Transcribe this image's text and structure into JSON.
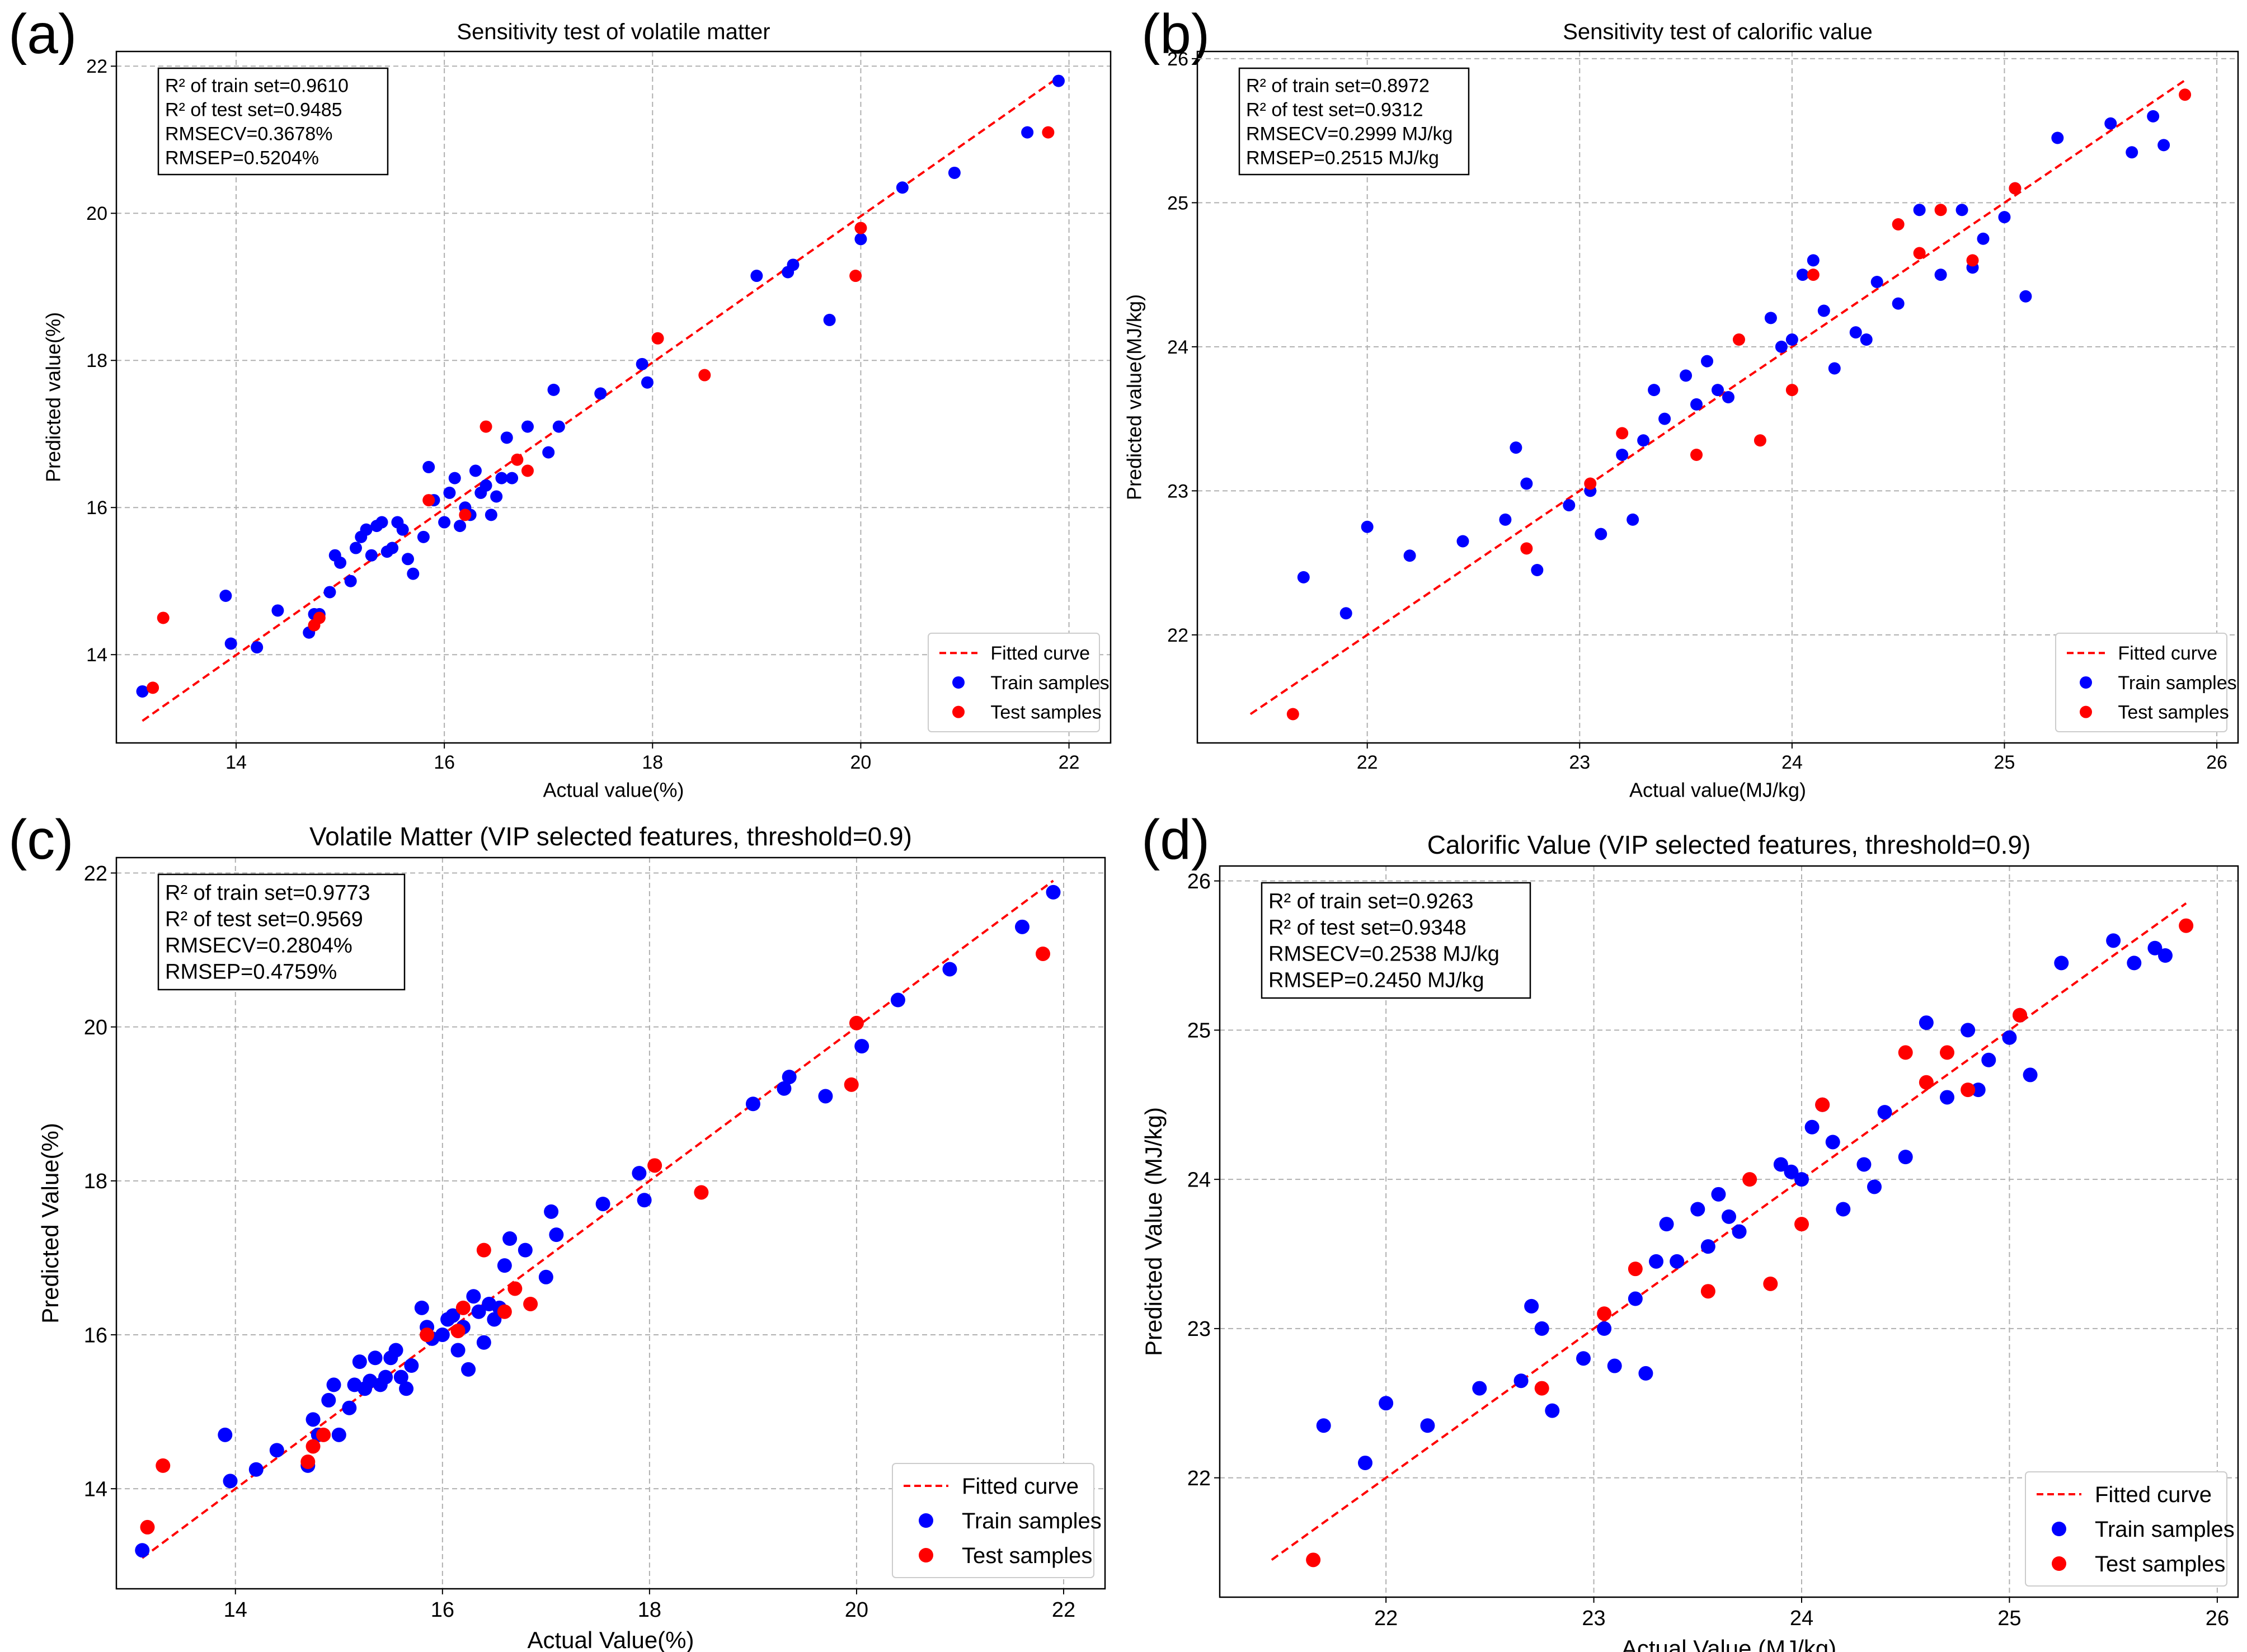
{
  "figure": {
    "background": "#ffffff"
  },
  "colors": {
    "train": "#0000ff",
    "test": "#ff0000",
    "fit": "#ff0000",
    "grid": "#b0b0b0"
  },
  "chart_data": [
    {
      "type": "scatter",
      "panel_label": "(a)",
      "title": "Sensitivity test of volatile matter",
      "xlabel": "Actual value(%)",
      "ylabel": "Predicted value(%)",
      "xlim": [
        12.85,
        22.4
      ],
      "ylim": [
        12.8,
        22.2
      ],
      "xticks": [
        14,
        16,
        18,
        20,
        22
      ],
      "yticks": [
        14,
        16,
        18,
        20,
        22
      ],
      "grid": true,
      "legend_position": "bottom-right",
      "stats": [
        "R² of train set=0.9610",
        "R² of test set=0.9485",
        "RMSECV=0.3678%",
        "RMSEP=0.5204%"
      ],
      "fit_line": {
        "name": "Fitted curve",
        "x": [
          13.1,
          21.9
        ],
        "y": [
          13.1,
          21.85
        ]
      },
      "series": [
        {
          "name": "Train samples",
          "x": [
            13.1,
            13.9,
            13.95,
            14.2,
            14.4,
            14.7,
            14.75,
            14.8,
            14.9,
            14.95,
            15.0,
            15.1,
            15.15,
            15.2,
            15.25,
            15.3,
            15.35,
            15.4,
            15.45,
            15.5,
            15.55,
            15.6,
            15.65,
            15.7,
            15.8,
            15.85,
            15.9,
            16.0,
            16.05,
            16.1,
            16.15,
            16.2,
            16.25,
            16.3,
            16.35,
            16.4,
            16.45,
            16.5,
            16.55,
            16.6,
            16.65,
            16.8,
            17.0,
            17.05,
            17.1,
            17.5,
            17.9,
            17.95,
            19.0,
            19.3,
            19.35,
            19.7,
            20.0,
            20.4,
            20.9,
            21.6,
            21.9
          ],
          "y": [
            13.5,
            14.8,
            14.15,
            14.1,
            14.6,
            14.3,
            14.55,
            14.55,
            14.85,
            15.35,
            15.25,
            15.0,
            15.45,
            15.6,
            15.7,
            15.35,
            15.75,
            15.8,
            15.4,
            15.45,
            15.8,
            15.7,
            15.3,
            15.1,
            15.6,
            16.55,
            16.1,
            15.8,
            16.2,
            16.4,
            15.75,
            16.0,
            15.9,
            16.5,
            16.2,
            16.3,
            15.9,
            16.15,
            16.4,
            16.95,
            16.4,
            17.1,
            16.75,
            17.6,
            17.1,
            17.55,
            17.95,
            17.7,
            19.15,
            19.2,
            19.3,
            18.55,
            19.65,
            20.35,
            20.55,
            21.1,
            21.8
          ]
        },
        {
          "name": "Test samples",
          "x": [
            13.2,
            13.3,
            14.75,
            14.8,
            15.85,
            16.2,
            16.4,
            16.7,
            16.8,
            18.05,
            18.5,
            19.95,
            20.0,
            21.8
          ],
          "y": [
            13.55,
            14.5,
            14.4,
            14.5,
            16.1,
            15.9,
            17.1,
            16.65,
            16.5,
            18.3,
            17.8,
            19.15,
            19.8,
            21.1
          ]
        }
      ]
    },
    {
      "type": "scatter",
      "panel_label": "(b)",
      "title": "Sensitivity test of calorific value",
      "xlabel": "Actual value(MJ/kg)",
      "ylabel": "Predicted value(MJ/kg)",
      "xlim": [
        21.2,
        26.1
      ],
      "ylim": [
        21.25,
        26.05
      ],
      "xticks": [
        22,
        23,
        24,
        25,
        26
      ],
      "yticks": [
        22,
        23,
        24,
        25,
        26
      ],
      "grid": true,
      "legend_position": "bottom-right",
      "stats": [
        "R² of train set=0.8972",
        "R² of test set=0.9312",
        "RMSECV=0.2999 MJ/kg",
        "RMSEP=0.2515 MJ/kg"
      ],
      "fit_line": {
        "name": "Fitted curve",
        "x": [
          21.45,
          25.85
        ],
        "y": [
          21.45,
          25.85
        ]
      },
      "series": [
        {
          "name": "Train samples",
          "x": [
            21.7,
            21.9,
            22.0,
            22.2,
            22.45,
            22.65,
            22.7,
            22.75,
            22.8,
            22.95,
            23.05,
            23.1,
            23.2,
            23.25,
            23.3,
            23.35,
            23.4,
            23.5,
            23.55,
            23.6,
            23.65,
            23.7,
            23.9,
            23.95,
            24.0,
            24.05,
            24.1,
            24.15,
            24.2,
            24.3,
            24.35,
            24.4,
            24.5,
            24.6,
            24.7,
            24.8,
            24.85,
            24.9,
            25.0,
            25.05,
            25.1,
            25.25,
            25.5,
            25.6,
            25.7,
            25.75
          ],
          "y": [
            22.4,
            22.15,
            22.75,
            22.55,
            22.65,
            22.8,
            23.3,
            23.05,
            22.45,
            22.9,
            23.0,
            22.7,
            23.25,
            22.8,
            23.35,
            23.7,
            23.5,
            23.8,
            23.6,
            23.9,
            23.7,
            23.65,
            24.2,
            24.0,
            24.05,
            24.5,
            24.6,
            24.25,
            23.85,
            24.1,
            24.05,
            24.45,
            24.3,
            24.95,
            24.5,
            24.95,
            24.55,
            24.75,
            24.9,
            25.1,
            24.35,
            25.45,
            25.55,
            25.35,
            25.6,
            25.4
          ]
        },
        {
          "name": "Test samples",
          "x": [
            21.65,
            22.75,
            23.05,
            23.2,
            23.55,
            23.75,
            23.85,
            24.0,
            24.1,
            24.5,
            24.6,
            24.7,
            24.85,
            25.05,
            25.85
          ],
          "y": [
            21.45,
            22.6,
            23.05,
            23.4,
            23.25,
            24.05,
            23.35,
            23.7,
            24.5,
            24.85,
            24.65,
            24.95,
            24.6,
            25.1,
            25.75
          ]
        }
      ]
    },
    {
      "type": "scatter",
      "panel_label": "(c)",
      "title": "Volatile Matter (VIP selected features, threshold=0.9)",
      "xlabel": "Actual Value(%)",
      "ylabel": "Predicted Value(%)",
      "xlim": [
        12.85,
        22.4
      ],
      "ylim": [
        12.7,
        22.2
      ],
      "xticks": [
        14,
        16,
        18,
        20,
        22
      ],
      "yticks": [
        14,
        16,
        18,
        20,
        22
      ],
      "grid": true,
      "legend_position": "bottom-right",
      "stats": [
        "R² of train set=0.9773",
        "R² of test set=0.9569",
        "RMSECV=0.2804%",
        "RMSEP=0.4759%"
      ],
      "fit_line": {
        "name": "Fitted curve",
        "x": [
          13.1,
          21.9
        ],
        "y": [
          13.1,
          21.9
        ]
      },
      "series": [
        {
          "name": "Train samples",
          "x": [
            13.1,
            13.9,
            13.95,
            14.2,
            14.4,
            14.7,
            14.75,
            14.8,
            14.9,
            14.95,
            15.0,
            15.1,
            15.15,
            15.2,
            15.25,
            15.3,
            15.35,
            15.4,
            15.45,
            15.5,
            15.55,
            15.6,
            15.65,
            15.7,
            15.8,
            15.85,
            15.9,
            16.0,
            16.05,
            16.1,
            16.15,
            16.2,
            16.25,
            16.3,
            16.35,
            16.4,
            16.45,
            16.5,
            16.55,
            16.6,
            16.65,
            16.8,
            17.0,
            17.05,
            17.1,
            17.55,
            17.9,
            17.95,
            19.0,
            19.3,
            19.35,
            19.7,
            20.05,
            20.4,
            20.9,
            21.6,
            21.9
          ],
          "y": [
            13.2,
            14.7,
            14.1,
            14.25,
            14.5,
            14.3,
            14.9,
            14.7,
            15.15,
            15.35,
            14.7,
            15.05,
            15.35,
            15.65,
            15.3,
            15.4,
            15.7,
            15.35,
            15.45,
            15.7,
            15.8,
            15.45,
            15.3,
            15.6,
            16.35,
            16.1,
            15.95,
            16.0,
            16.2,
            16.25,
            15.8,
            16.1,
            15.55,
            16.5,
            16.3,
            15.9,
            16.4,
            16.2,
            16.35,
            16.9,
            17.25,
            17.1,
            16.75,
            17.6,
            17.3,
            17.7,
            18.1,
            17.75,
            19.0,
            19.2,
            19.35,
            19.1,
            19.75,
            20.35,
            20.75,
            21.3,
            21.75
          ]
        },
        {
          "name": "Test samples",
          "x": [
            13.15,
            13.3,
            14.7,
            14.75,
            14.85,
            15.85,
            16.15,
            16.2,
            16.4,
            16.6,
            16.7,
            16.85,
            18.05,
            18.5,
            19.95,
            20.0,
            21.8
          ],
          "y": [
            13.5,
            14.3,
            14.35,
            14.55,
            14.7,
            16.0,
            16.05,
            16.35,
            17.1,
            16.3,
            16.6,
            16.4,
            18.2,
            17.85,
            19.25,
            20.05,
            20.95
          ]
        }
      ]
    },
    {
      "type": "scatter",
      "panel_label": "(d)",
      "title": "Calorific Value (VIP selected features, threshold=0.9)",
      "xlabel": "Actual Value  (MJ/kg)",
      "ylabel": "Predicted Value  (MJ/kg)",
      "xlim": [
        21.2,
        26.1
      ],
      "ylim": [
        21.2,
        26.1
      ],
      "xticks": [
        22,
        23,
        24,
        25,
        26
      ],
      "yticks": [
        22,
        23,
        24,
        25,
        26
      ],
      "grid": true,
      "legend_position": "bottom-right",
      "stats": [
        "R² of train set=0.9263",
        "R² of test set=0.9348",
        "RMSECV=0.2538 MJ/kg",
        "RMSEP=0.2450 MJ/kg"
      ],
      "fit_line": {
        "name": "Fitted curve",
        "x": [
          21.45,
          25.85
        ],
        "y": [
          21.45,
          25.85
        ]
      },
      "series": [
        {
          "name": "Train samples",
          "x": [
            21.7,
            21.9,
            22.0,
            22.2,
            22.45,
            22.65,
            22.7,
            22.75,
            22.8,
            22.95,
            23.05,
            23.1,
            23.2,
            23.25,
            23.3,
            23.35,
            23.4,
            23.5,
            23.55,
            23.6,
            23.65,
            23.7,
            23.9,
            23.95,
            24.0,
            24.05,
            24.1,
            24.15,
            24.2,
            24.3,
            24.35,
            24.4,
            24.5,
            24.6,
            24.7,
            24.8,
            24.85,
            24.9,
            25.0,
            25.05,
            25.1,
            25.25,
            25.5,
            25.6,
            25.7,
            25.75
          ],
          "y": [
            22.35,
            22.1,
            22.5,
            22.35,
            22.6,
            22.65,
            23.15,
            23.0,
            22.45,
            22.8,
            23.0,
            22.75,
            23.2,
            22.7,
            23.45,
            23.7,
            23.45,
            23.8,
            23.55,
            23.9,
            23.75,
            23.65,
            24.1,
            24.05,
            24.0,
            24.35,
            24.5,
            24.25,
            23.8,
            24.1,
            23.95,
            24.45,
            24.15,
            25.05,
            24.55,
            25.0,
            24.6,
            24.8,
            24.95,
            25.1,
            24.7,
            25.45,
            25.6,
            25.45,
            25.55,
            25.5
          ]
        },
        {
          "name": "Test samples",
          "x": [
            21.65,
            22.75,
            23.05,
            23.2,
            23.55,
            23.75,
            23.85,
            24.0,
            24.1,
            24.5,
            24.6,
            24.7,
            24.8,
            25.05,
            25.85
          ],
          "y": [
            21.45,
            22.6,
            23.1,
            23.4,
            23.25,
            24.0,
            23.3,
            23.7,
            24.5,
            24.85,
            24.65,
            24.85,
            24.6,
            25.1,
            25.7
          ]
        }
      ]
    }
  ]
}
